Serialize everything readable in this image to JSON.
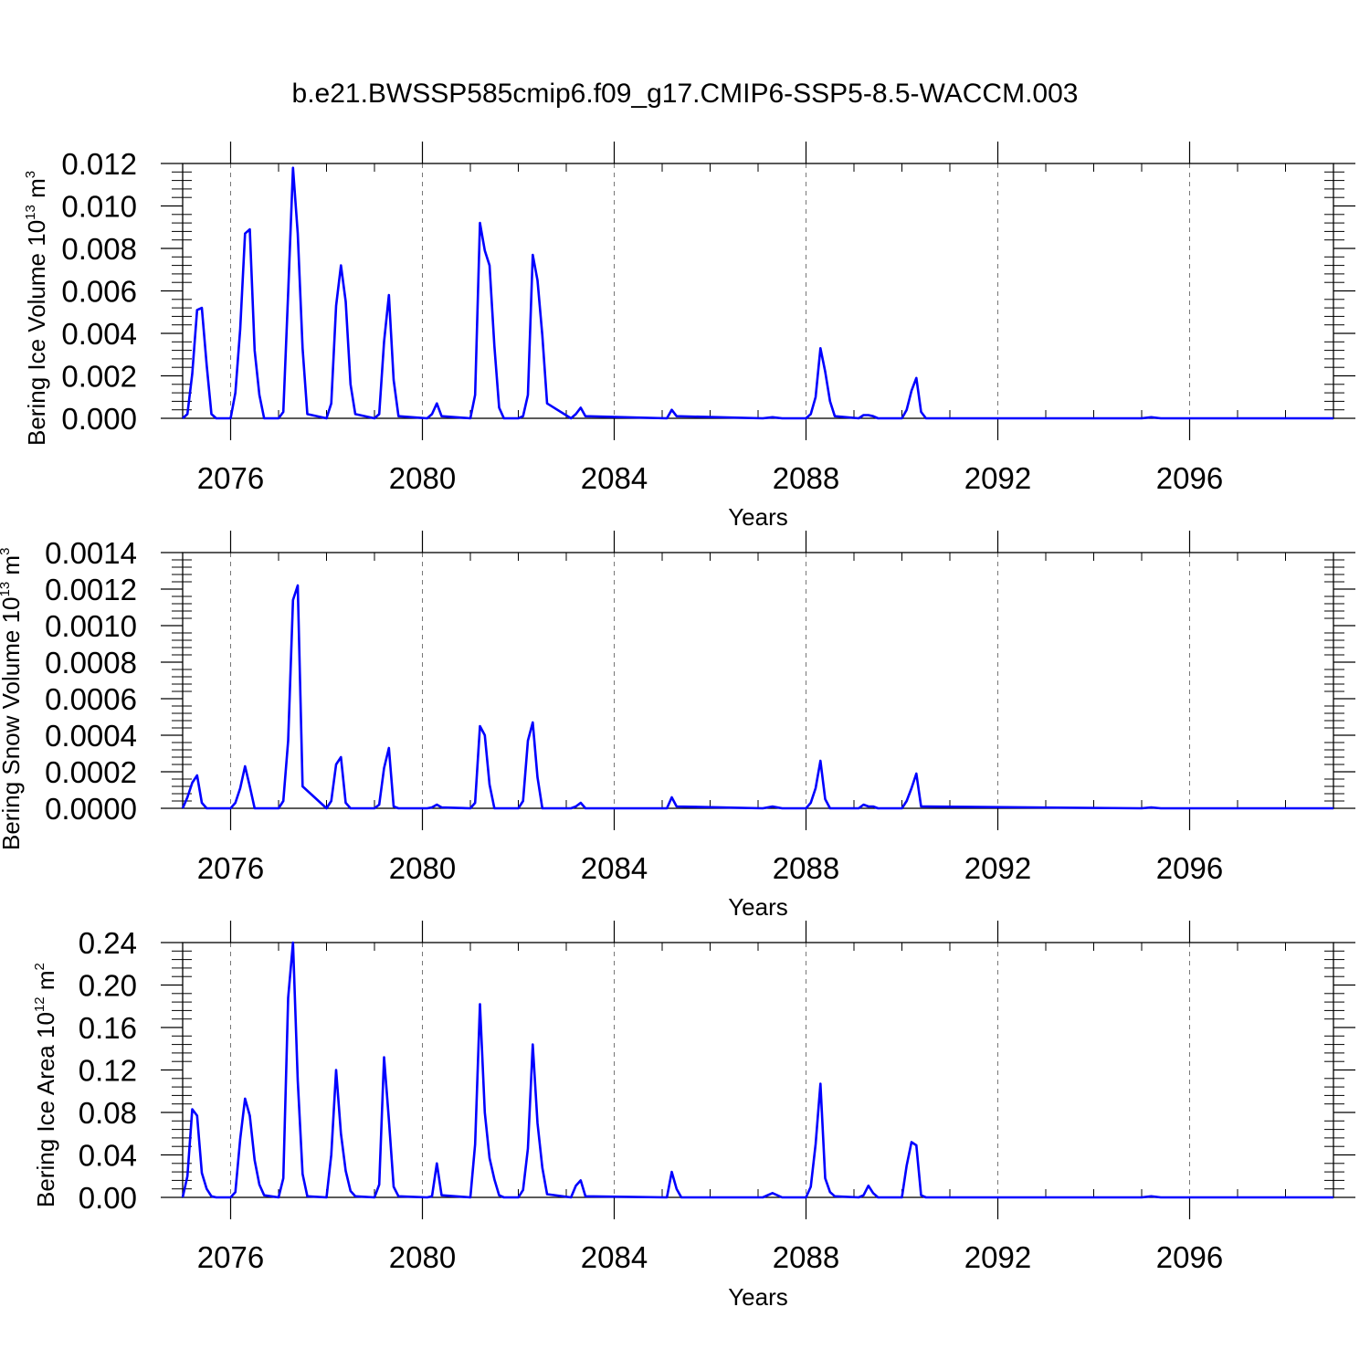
{
  "title": "b.e21.BWSSP585cmip6.f09_g17.CMIP6-SSP5-8.5-WACCM.003",
  "line_color": "#0000ff",
  "chart_data": [
    {
      "type": "line",
      "ylabel": {
        "prefix": "Bering Ice Volume 10",
        "exp": "13",
        "unit": " m",
        "unit_exp": "3"
      },
      "xlabel": "Years",
      "xlim": [
        2075,
        2099
      ],
      "ylim": [
        0,
        0.012
      ],
      "yticks": [
        "0.000",
        "0.002",
        "0.004",
        "0.006",
        "0.008",
        "0.010",
        "0.012"
      ],
      "xticks": [
        "2076",
        "2080",
        "2084",
        "2088",
        "2092",
        "2096"
      ],
      "grid": "x dashed",
      "series": [
        {
          "x": [
            2075.0,
            2075.1,
            2075.2,
            2075.3,
            2075.4,
            2075.5,
            2075.6,
            2075.7,
            2076.0,
            2076.1,
            2076.2,
            2076.3,
            2076.4,
            2076.5,
            2076.6,
            2076.7,
            2077.0,
            2077.1,
            2077.2,
            2077.3,
            2077.4,
            2077.5,
            2077.6,
            2078.0,
            2078.1,
            2078.2,
            2078.3,
            2078.4,
            2078.5,
            2078.6,
            2079.0,
            2079.1,
            2079.2,
            2079.3,
            2079.4,
            2079.5,
            2080.1,
            2080.2,
            2080.3,
            2080.4,
            2081.0,
            2081.1,
            2081.2,
            2081.3,
            2081.4,
            2081.5,
            2081.6,
            2081.7,
            2082.0,
            2082.1,
            2082.2,
            2082.3,
            2082.4,
            2082.5,
            2082.6,
            2083.1,
            2083.2,
            2083.3,
            2083.4,
            2085.1,
            2085.2,
            2085.3,
            2087.1,
            2087.3,
            2087.5,
            2088.0,
            2088.1,
            2088.2,
            2088.3,
            2088.4,
            2088.5,
            2088.6,
            2089.1,
            2089.2,
            2089.3,
            2089.4,
            2089.5,
            2090.0,
            2090.1,
            2090.2,
            2090.3,
            2090.4,
            2090.5,
            2095.0,
            2095.2,
            2095.4,
            2099.0
          ],
          "y": [
            0.0,
            0.0002,
            0.0021,
            0.0051,
            0.0052,
            0.0025,
            0.0002,
            0.0,
            0.0,
            0.0012,
            0.0042,
            0.0087,
            0.0089,
            0.0032,
            0.0011,
            0.0,
            0.0,
            0.0003,
            0.0059,
            0.0118,
            0.0087,
            0.0033,
            0.0002,
            0.0,
            0.0007,
            0.0053,
            0.0072,
            0.0055,
            0.0016,
            0.0002,
            0.0,
            0.0002,
            0.0036,
            0.0058,
            0.0018,
            0.0001,
            0.0,
            0.0002,
            0.0007,
            0.0001,
            0.0,
            0.0011,
            0.0092,
            0.0079,
            0.0072,
            0.0034,
            0.0005,
            0.0,
            0.0,
            0.0001,
            0.0011,
            0.0077,
            0.0065,
            0.0039,
            0.0007,
            0.0,
            0.0002,
            0.0005,
            0.0001,
            0.0,
            0.0004,
            0.0001,
            0.0,
            5e-05,
            0.0,
            0.0,
            0.0002,
            0.001,
            0.0033,
            0.0022,
            0.0008,
            0.0001,
            0.0,
            0.00015,
            0.00015,
            0.0001,
            0.0,
            0.0,
            0.0004,
            0.0013,
            0.0019,
            0.0003,
            0.0,
            0.0,
            5e-05,
            0.0,
            0.0
          ]
        }
      ]
    },
    {
      "type": "line",
      "ylabel": {
        "prefix": "Bering Snow Volume 10",
        "exp": "13",
        "unit": " m",
        "unit_exp": "3"
      },
      "xlabel": "Years",
      "xlim": [
        2075,
        2099
      ],
      "ylim": [
        0,
        0.0014
      ],
      "yticks": [
        "0.0000",
        "0.0002",
        "0.0004",
        "0.0006",
        "0.0008",
        "0.0010",
        "0.0012",
        "0.0014"
      ],
      "xticks": [
        "2076",
        "2080",
        "2084",
        "2088",
        "2092",
        "2096"
      ],
      "grid": "x dashed",
      "series": [
        {
          "x": [
            2075.0,
            2075.1,
            2075.2,
            2075.3,
            2075.4,
            2075.5,
            2076.0,
            2076.1,
            2076.2,
            2076.3,
            2076.4,
            2076.5,
            2077.0,
            2077.1,
            2077.2,
            2077.3,
            2077.4,
            2077.5,
            2078.0,
            2078.1,
            2078.2,
            2078.3,
            2078.4,
            2078.5,
            2079.0,
            2079.1,
            2079.2,
            2079.3,
            2079.4,
            2079.5,
            2080.1,
            2080.2,
            2080.3,
            2080.4,
            2081.0,
            2081.1,
            2081.2,
            2081.3,
            2081.4,
            2081.5,
            2082.0,
            2082.1,
            2082.2,
            2082.3,
            2082.4,
            2082.5,
            2083.1,
            2083.2,
            2083.3,
            2083.4,
            2085.1,
            2085.2,
            2085.3,
            2087.1,
            2087.3,
            2087.5,
            2088.0,
            2088.1,
            2088.2,
            2088.3,
            2088.4,
            2088.5,
            2089.1,
            2089.2,
            2089.3,
            2089.4,
            2089.5,
            2090.0,
            2090.1,
            2090.2,
            2090.3,
            2090.4,
            2095.0,
            2095.2,
            2095.4,
            2099.0
          ],
          "y": [
            0.0,
            6e-05,
            0.00014,
            0.00018,
            3e-05,
            0.0,
            0.0,
            3e-05,
            0.00011,
            0.00023,
            0.00012,
            0.0,
            0.0,
            4e-05,
            0.00037,
            0.00114,
            0.00122,
            0.00012,
            0.0,
            4e-05,
            0.00024,
            0.00028,
            3e-05,
            0.0,
            0.0,
            2e-05,
            0.00022,
            0.00033,
            1e-05,
            0.0,
            0.0,
            5e-06,
            2e-05,
            5e-06,
            0.0,
            3e-05,
            0.00045,
            0.0004,
            0.00013,
            0.0,
            0.0,
            4e-05,
            0.00037,
            0.00047,
            0.00017,
            0.0,
            0.0,
            1e-05,
            3e-05,
            0.0,
            0.0,
            6e-05,
            1e-05,
            0.0,
            1e-05,
            0.0,
            0.0,
            3e-05,
            0.00011,
            0.00026,
            5e-05,
            0.0,
            0.0,
            2e-05,
            1e-05,
            1e-05,
            0.0,
            0.0,
            4e-05,
            0.00011,
            0.00019,
            1e-05,
            0.0,
            5e-06,
            0.0,
            0.0
          ]
        }
      ]
    },
    {
      "type": "line",
      "ylabel": {
        "prefix": "Bering Ice Area 10",
        "exp": "12",
        "unit": " m",
        "unit_exp": "2"
      },
      "xlabel": "Years",
      "xlim": [
        2075,
        2099
      ],
      "ylim": [
        0,
        0.24
      ],
      "yticks": [
        "0.00",
        "0.04",
        "0.08",
        "0.12",
        "0.16",
        "0.20",
        "0.24"
      ],
      "xticks": [
        "2076",
        "2080",
        "2084",
        "2088",
        "2092",
        "2096"
      ],
      "grid": "x dashed",
      "series": [
        {
          "x": [
            2075.0,
            2075.1,
            2075.2,
            2075.3,
            2075.4,
            2075.5,
            2075.6,
            2075.7,
            2076.0,
            2076.1,
            2076.2,
            2076.3,
            2076.4,
            2076.5,
            2076.6,
            2076.7,
            2077.0,
            2077.1,
            2077.2,
            2077.3,
            2077.4,
            2077.5,
            2077.6,
            2078.0,
            2078.1,
            2078.2,
            2078.3,
            2078.4,
            2078.5,
            2078.6,
            2079.0,
            2079.1,
            2079.2,
            2079.3,
            2079.4,
            2079.5,
            2080.1,
            2080.2,
            2080.3,
            2080.4,
            2081.0,
            2081.1,
            2081.2,
            2081.3,
            2081.4,
            2081.5,
            2081.6,
            2081.7,
            2082.0,
            2082.1,
            2082.2,
            2082.3,
            2082.4,
            2082.5,
            2082.6,
            2083.1,
            2083.2,
            2083.3,
            2083.4,
            2085.1,
            2085.2,
            2085.3,
            2085.4,
            2087.1,
            2087.3,
            2087.5,
            2088.0,
            2088.1,
            2088.2,
            2088.3,
            2088.4,
            2088.5,
            2088.6,
            2089.1,
            2089.2,
            2089.3,
            2089.4,
            2089.5,
            2090.0,
            2090.1,
            2090.2,
            2090.3,
            2090.4,
            2090.5,
            2095.0,
            2095.2,
            2095.4,
            2099.0
          ],
          "y": [
            0.0,
            0.02,
            0.083,
            0.077,
            0.023,
            0.008,
            0.001,
            0.0,
            0.0,
            0.005,
            0.055,
            0.093,
            0.077,
            0.035,
            0.012,
            0.002,
            0.0,
            0.018,
            0.188,
            0.24,
            0.11,
            0.022,
            0.001,
            0.0,
            0.04,
            0.12,
            0.06,
            0.025,
            0.006,
            0.001,
            0.0,
            0.012,
            0.132,
            0.073,
            0.01,
            0.001,
            0.0,
            0.001,
            0.032,
            0.002,
            0.0,
            0.05,
            0.182,
            0.08,
            0.037,
            0.017,
            0.002,
            0.0,
            0.0,
            0.007,
            0.046,
            0.144,
            0.07,
            0.028,
            0.003,
            0.0,
            0.011,
            0.016,
            0.001,
            0.0,
            0.024,
            0.008,
            0.0,
            0.0,
            0.004,
            0.0,
            0.0,
            0.01,
            0.05,
            0.107,
            0.018,
            0.005,
            0.001,
            0.0,
            0.002,
            0.011,
            0.004,
            0.0,
            0.0,
            0.03,
            0.052,
            0.049,
            0.002,
            0.0,
            0.0,
            0.001,
            0.0,
            0.0
          ]
        }
      ]
    }
  ]
}
